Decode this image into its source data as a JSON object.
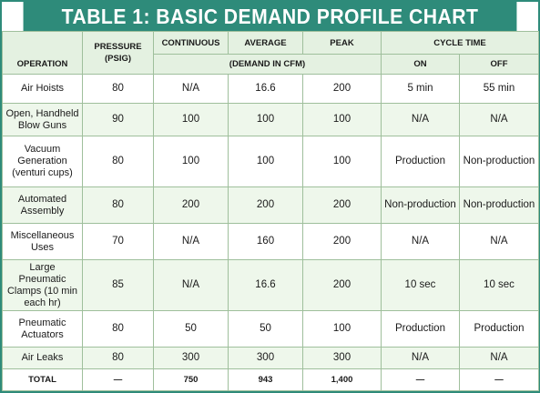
{
  "title": "TABLE 1: BASIC DEMAND PROFILE CHART",
  "headers": {
    "operation": "OPERATION",
    "pressure": "PRESSURE (PSIG)",
    "continuous": "CONTINUOUS",
    "average": "AVERAGE",
    "peak": "PEAK",
    "cycle_time": "CYCLE TIME",
    "demand_unit": "(DEMAND IN CFM)",
    "on": "ON",
    "off": "OFF"
  },
  "rows": [
    {
      "operation": "Air Hoists",
      "pressure": "80",
      "continuous": "N/A",
      "average": "16.6",
      "peak": "200",
      "on": "5 min",
      "off": "55 min"
    },
    {
      "operation": "Open, Handheld Blow Guns",
      "pressure": "90",
      "continuous": "100",
      "average": "100",
      "peak": "100",
      "on": "N/A",
      "off": "N/A"
    },
    {
      "operation": "Vacuum Generation (venturi cups)",
      "pressure": "80",
      "continuous": "100",
      "average": "100",
      "peak": "100",
      "on": "Production",
      "off": "Non-production"
    },
    {
      "operation": "Automated Assembly",
      "pressure": "80",
      "continuous": "200",
      "average": "200",
      "peak": "200",
      "on": "Non-production",
      "off": "Non-production"
    },
    {
      "operation": "Miscellaneous Uses",
      "pressure": "70",
      "continuous": "N/A",
      "average": "160",
      "peak": "200",
      "on": "N/A",
      "off": "N/A"
    },
    {
      "operation": "Large Pneumatic Clamps (10 min each hr)",
      "pressure": "85",
      "continuous": "N/A",
      "average": "16.6",
      "peak": "200",
      "on": "10 sec",
      "off": "10 sec"
    },
    {
      "operation": "Pneumatic Actuators",
      "pressure": "80",
      "continuous": "50",
      "average": "50",
      "peak": "100",
      "on": "Production",
      "off": "Production"
    },
    {
      "operation": "Air Leaks",
      "pressure": "80",
      "continuous": "300",
      "average": "300",
      "peak": "300",
      "on": "N/A",
      "off": "N/A"
    }
  ],
  "total": {
    "operation": "TOTAL",
    "pressure": "—",
    "continuous": "750",
    "average": "943",
    "peak": "1,400",
    "on": "—",
    "off": "—"
  }
}
